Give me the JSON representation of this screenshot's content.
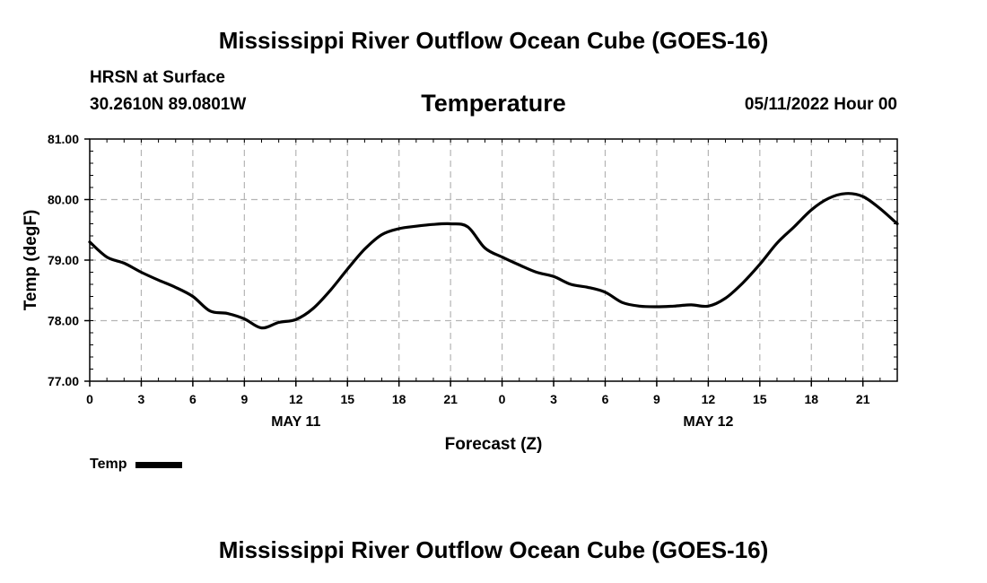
{
  "header": {
    "title": "Mississippi River Outflow Ocean Cube (GOES-16)",
    "location_name": "HRSN at Surface",
    "coordinates": "30.2610N  89.0801W",
    "chart_title": "Temperature",
    "run_time": "05/11/2022 Hour 00"
  },
  "footer": {
    "title": "Mississippi River Outflow Ocean Cube (GOES-16)"
  },
  "legend": {
    "label": "Temp"
  },
  "colors": {
    "line": "#000000",
    "grid": "#b4b4b4",
    "background": "#ffffff"
  },
  "chart_data": {
    "type": "line",
    "title": "Temperature",
    "xlabel": "Forecast (Z)",
    "ylabel": "Temp (degF)",
    "xlim": [
      0,
      47
    ],
    "ylim": [
      77.0,
      81.0
    ],
    "y_ticks": [
      "77.00",
      "78.00",
      "79.00",
      "80.00",
      "81.00"
    ],
    "y_tick_values": [
      77.0,
      78.0,
      79.0,
      80.0,
      81.0
    ],
    "x_tick_hours": [
      0,
      3,
      6,
      9,
      12,
      15,
      18,
      21,
      24,
      27,
      30,
      33,
      36,
      39,
      42,
      45
    ],
    "x_tick_labels": [
      "0",
      "3",
      "6",
      "9",
      "12",
      "15",
      "18",
      "21",
      "0",
      "3",
      "6",
      "9",
      "12",
      "15",
      "18",
      "21"
    ],
    "day_labels": [
      {
        "label": "MAY 11",
        "hour": 12
      },
      {
        "label": "MAY 12",
        "hour": 36
      }
    ],
    "grid": true,
    "legend_position": "bottom-left",
    "series": [
      {
        "name": "Temp",
        "x": [
          0,
          1,
          2,
          3,
          4,
          5,
          6,
          7,
          8,
          9,
          10,
          11,
          12,
          13,
          14,
          15,
          16,
          17,
          18,
          19,
          20,
          21,
          22,
          23,
          24,
          25,
          26,
          27,
          28,
          29,
          30,
          31,
          32,
          33,
          34,
          35,
          36,
          37,
          38,
          39,
          40,
          41,
          42,
          43,
          44,
          45,
          46,
          47
        ],
        "values": [
          79.3,
          79.05,
          78.95,
          78.8,
          78.67,
          78.55,
          78.4,
          78.16,
          78.12,
          78.03,
          77.88,
          77.97,
          78.02,
          78.2,
          78.5,
          78.85,
          79.18,
          79.42,
          79.52,
          79.56,
          79.59,
          79.6,
          79.55,
          79.2,
          79.05,
          78.92,
          78.8,
          78.73,
          78.6,
          78.55,
          78.47,
          78.3,
          78.24,
          78.23,
          78.24,
          78.26,
          78.24,
          78.37,
          78.62,
          78.93,
          79.28,
          79.55,
          79.83,
          80.02,
          80.1,
          80.05,
          79.85,
          79.6
        ]
      }
    ]
  }
}
